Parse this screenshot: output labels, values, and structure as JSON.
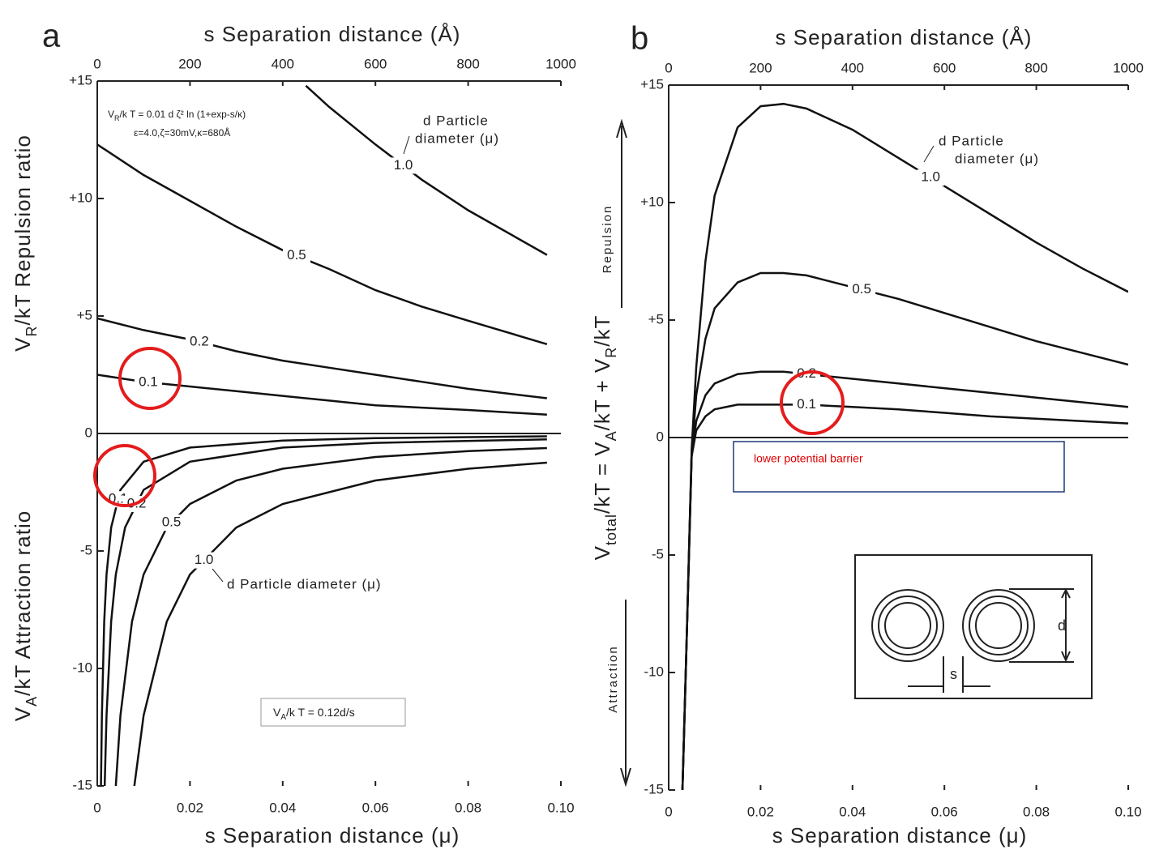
{
  "chart_data": [
    {
      "type": "line",
      "panel": "a",
      "x2label": "s Separation distance (Å)",
      "xlabel": "s Separation distance (μ)",
      "ylabel_top": [
        "V",
        "R",
        "/kT Repulsion ratio"
      ],
      "ylabel_bottom": [
        "V",
        "A",
        "/kT Attraction ratio"
      ],
      "xlim": [
        0,
        0.1
      ],
      "xticks": [
        0,
        0.02,
        0.04,
        0.06,
        0.08,
        {
          "value": 0.1,
          "label": "0.10"
        }
      ],
      "x2lim": [
        0,
        1000
      ],
      "x2ticks": [
        0,
        200,
        400,
        600,
        800,
        1000
      ],
      "ylim": [
        -15,
        15
      ],
      "yticks": [
        {
          "value": 15,
          "label": "+15"
        },
        {
          "value": 10,
          "label": "+10"
        },
        {
          "value": 5,
          "label": "+5"
        },
        0,
        -5,
        -10,
        -15
      ],
      "annotations": {
        "repulsion_formula": [
          "V",
          "R",
          "/k T = 0.01 d ζ² ln (1+exp-s/κ)"
        ],
        "repulsion_params": "ε=4.0,ζ=30mV,κ=680Å",
        "particle_label_top": [
          "d Particle",
          "diameter (μ)"
        ],
        "particle_label_bottom": "d Particle diameter (μ)",
        "attraction_formula": [
          "V",
          "A",
          "/k T = 0.12d/s"
        ]
      },
      "series": [
        {
          "name": "1.0",
          "color": "#111111",
          "x": [
            0.045,
            0.05,
            0.06,
            0.07,
            0.08,
            0.097
          ],
          "values": [
            14.8,
            13.9,
            12.3,
            10.8,
            9.5,
            7.6
          ]
        },
        {
          "name": "0.5",
          "color": "#111111",
          "x": [
            0,
            0.01,
            0.02,
            0.03,
            0.04,
            0.05,
            0.06,
            0.07,
            0.08,
            0.097
          ],
          "values": [
            12.3,
            11.0,
            9.9,
            8.8,
            7.8,
            7.0,
            6.1,
            5.4,
            4.8,
            3.8
          ]
        },
        {
          "name": "0.2",
          "color": "#111111",
          "x": [
            0,
            0.01,
            0.02,
            0.03,
            0.04,
            0.05,
            0.06,
            0.07,
            0.08,
            0.097
          ],
          "values": [
            4.9,
            4.4,
            4.0,
            3.5,
            3.1,
            2.8,
            2.5,
            2.2,
            1.9,
            1.5
          ]
        },
        {
          "name": "0.1",
          "color": "#111111",
          "x": [
            0,
            0.01,
            0.02,
            0.03,
            0.04,
            0.05,
            0.06,
            0.07,
            0.08,
            0.097
          ],
          "values": [
            2.5,
            2.2,
            2.0,
            1.8,
            1.6,
            1.4,
            1.2,
            1.1,
            1.0,
            0.8
          ]
        },
        {
          "name": "0.1",
          "color": "#111111",
          "x": [
            0.0008,
            0.001,
            0.0015,
            0.002,
            0.003,
            0.005,
            0.01,
            0.02,
            0.04,
            0.06,
            0.097
          ],
          "values": [
            -15,
            -12,
            -8,
            -6,
            -4,
            -2.4,
            -1.2,
            -0.6,
            -0.3,
            -0.2,
            -0.12
          ]
        },
        {
          "name": "0.2",
          "color": "#111111",
          "x": [
            0.0016,
            0.002,
            0.003,
            0.004,
            0.006,
            0.01,
            0.02,
            0.04,
            0.06,
            0.097
          ],
          "values": [
            -15,
            -12,
            -8,
            -6,
            -4,
            -2.4,
            -1.2,
            -0.6,
            -0.4,
            -0.25
          ]
        },
        {
          "name": "0.5",
          "color": "#111111",
          "x": [
            0.004,
            0.005,
            0.0075,
            0.01,
            0.015,
            0.02,
            0.03,
            0.04,
            0.06,
            0.08,
            0.097
          ],
          "values": [
            -15,
            -12,
            -8,
            -6,
            -4,
            -3,
            -2,
            -1.5,
            -1,
            -0.75,
            -0.62
          ]
        },
        {
          "name": "1.0",
          "color": "#111111",
          "x": [
            0.008,
            0.01,
            0.015,
            0.02,
            0.03,
            0.04,
            0.06,
            0.08,
            0.097
          ],
          "values": [
            -15,
            -12,
            -8,
            -6,
            -4,
            -3,
            -2,
            -1.5,
            -1.24
          ]
        }
      ]
    },
    {
      "type": "line",
      "panel": "b",
      "x2label": "s Separation distance (Å)",
      "xlabel": "s Separation distance (μ)",
      "ylabel": [
        "V",
        "total",
        "/kT = V",
        "A",
        "/kT + V",
        "R",
        "/kT"
      ],
      "xlim": [
        0,
        0.1
      ],
      "xticks": [
        0,
        0.02,
        0.04,
        0.06,
        0.08,
        {
          "value": 0.1,
          "label": "0.10"
        }
      ],
      "x2lim": [
        0,
        1000
      ],
      "x2ticks": [
        0,
        200,
        400,
        600,
        800,
        1000
      ],
      "ylim": [
        -15,
        15
      ],
      "yticks": [
        {
          "value": 15,
          "label": "+15"
        },
        {
          "value": 10,
          "label": "+10"
        },
        {
          "value": 5,
          "label": "+5"
        },
        0,
        -5,
        -10,
        -15
      ],
      "annotations": {
        "repulsion_label": "Repulsion",
        "attraction_label": "Attraction",
        "particle_label": [
          "d Particle",
          "diameter (μ)"
        ],
        "inset_d": "d",
        "inset_s": "s",
        "note": "lower potential barrier"
      },
      "series": [
        {
          "name": "1.0",
          "color": "#111111",
          "x": [
            0.003,
            0.004,
            0.005,
            0.006,
            0.008,
            0.01,
            0.015,
            0.02,
            0.025,
            0.03,
            0.04,
            0.05,
            0.06,
            0.07,
            0.08,
            0.09,
            0.1
          ],
          "values": [
            -15,
            -8,
            -0.5,
            3,
            7.5,
            10.3,
            13.2,
            14.1,
            14.2,
            14.0,
            13.1,
            11.9,
            10.7,
            9.5,
            8.3,
            7.2,
            6.2
          ]
        },
        {
          "name": "0.5",
          "color": "#111111",
          "x": [
            0.003,
            0.004,
            0.005,
            0.006,
            0.008,
            0.01,
            0.015,
            0.02,
            0.025,
            0.03,
            0.04,
            0.05,
            0.06,
            0.07,
            0.08,
            0.09,
            0.1
          ],
          "values": [
            -15,
            -8,
            -0.7,
            1.8,
            4.2,
            5.5,
            6.6,
            7.0,
            7.0,
            6.9,
            6.4,
            5.9,
            5.3,
            4.7,
            4.1,
            3.6,
            3.1
          ]
        },
        {
          "name": "0.2",
          "color": "#111111",
          "x": [
            0.003,
            0.004,
            0.005,
            0.006,
            0.008,
            0.01,
            0.015,
            0.02,
            0.025,
            0.03,
            0.04,
            0.05,
            0.06,
            0.07,
            0.08,
            0.09,
            0.1
          ],
          "values": [
            -15,
            -8,
            -0.8,
            0.7,
            1.8,
            2.3,
            2.7,
            2.8,
            2.8,
            2.7,
            2.5,
            2.3,
            2.1,
            1.9,
            1.7,
            1.5,
            1.3
          ]
        },
        {
          "name": "0.1",
          "color": "#111111",
          "x": [
            0.003,
            0.004,
            0.005,
            0.006,
            0.008,
            0.01,
            0.015,
            0.02,
            0.025,
            0.03,
            0.04,
            0.05,
            0.06,
            0.07,
            0.08,
            0.09,
            0.1
          ],
          "values": [
            -15,
            -8,
            -0.8,
            0.3,
            0.9,
            1.2,
            1.4,
            1.4,
            1.4,
            1.4,
            1.3,
            1.2,
            1.05,
            0.9,
            0.8,
            0.7,
            0.6
          ]
        }
      ]
    }
  ]
}
